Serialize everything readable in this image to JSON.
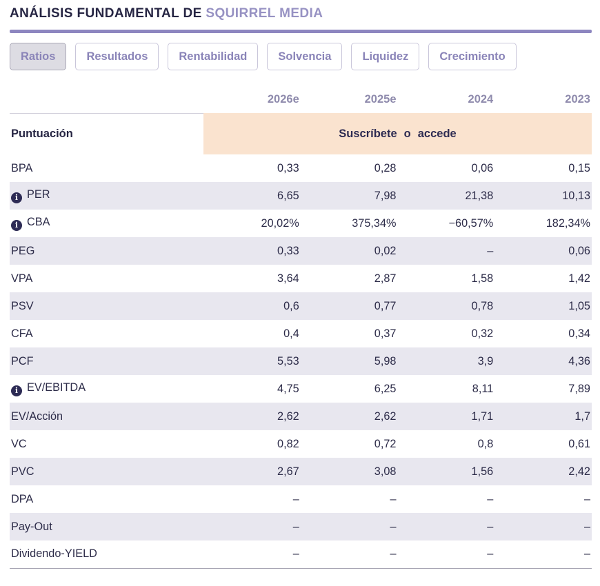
{
  "header": {
    "title_prefix": "ANÁLISIS FUNDAMENTAL DE ",
    "title_company": "SQUIRREL MEDIA"
  },
  "tabs": [
    {
      "label": "Ratios",
      "active": true
    },
    {
      "label": "Resultados",
      "active": false
    },
    {
      "label": "Rentabilidad",
      "active": false
    },
    {
      "label": "Solvencia",
      "active": false
    },
    {
      "label": "Liquidez",
      "active": false
    },
    {
      "label": "Crecimiento",
      "active": false
    }
  ],
  "icons": {
    "info": "i"
  },
  "table": {
    "year_columns": [
      "2026e",
      "2025e",
      "2024",
      "2023"
    ],
    "score_row": {
      "label": "Puntuación",
      "subscribe_text": "Suscríbete",
      "or_text": "o",
      "access_text": "accede"
    },
    "rows": [
      {
        "label": "BPA",
        "info": false,
        "values": [
          "0,33",
          "0,28",
          "0,06",
          "0,15"
        ]
      },
      {
        "label": "PER",
        "info": true,
        "values": [
          "6,65",
          "7,98",
          "21,38",
          "10,13"
        ]
      },
      {
        "label": "CBA",
        "info": true,
        "values": [
          "20,02%",
          "375,34%",
          "−60,57%",
          "182,34%"
        ]
      },
      {
        "label": "PEG",
        "info": false,
        "values": [
          "0,33",
          "0,02",
          "–",
          "0,06"
        ]
      },
      {
        "label": "VPA",
        "info": false,
        "values": [
          "3,64",
          "2,87",
          "1,58",
          "1,42"
        ]
      },
      {
        "label": "PSV",
        "info": false,
        "values": [
          "0,6",
          "0,77",
          "0,78",
          "1,05"
        ]
      },
      {
        "label": "CFA",
        "info": false,
        "values": [
          "0,4",
          "0,37",
          "0,32",
          "0,34"
        ]
      },
      {
        "label": "PCF",
        "info": false,
        "values": [
          "5,53",
          "5,98",
          "3,9",
          "4,36"
        ]
      },
      {
        "label": "EV/EBITDA",
        "info": true,
        "values": [
          "4,75",
          "6,25",
          "8,11",
          "7,89"
        ]
      },
      {
        "label": "EV/Acción",
        "info": false,
        "values": [
          "2,62",
          "2,62",
          "1,71",
          "1,7"
        ]
      },
      {
        "label": "VC",
        "info": false,
        "values": [
          "0,82",
          "0,72",
          "0,8",
          "0,61"
        ]
      },
      {
        "label": "PVC",
        "info": false,
        "values": [
          "2,67",
          "3,08",
          "1,56",
          "2,42"
        ]
      },
      {
        "label": "DPA",
        "info": false,
        "values": [
          "–",
          "–",
          "–",
          "–"
        ]
      },
      {
        "label": "Pay-Out",
        "info": false,
        "values": [
          "–",
          "–",
          "–",
          "–"
        ]
      },
      {
        "label": "Dividendo-YIELD",
        "info": false,
        "values": [
          "–",
          "–",
          "–",
          "–"
        ]
      }
    ]
  },
  "colors": {
    "title_dark": "#262543",
    "title_company": "#9792c3",
    "divider": "#8d86c0",
    "tab_text": "#8a84b8",
    "tab_active_bg": "#dddce3",
    "stripe_bg": "#e8e7ef",
    "subscribe_bg": "#fae3cf",
    "body_text": "#2d2c49",
    "year_header": "#8f8bad",
    "info_icon_bg": "#2d2b55"
  }
}
